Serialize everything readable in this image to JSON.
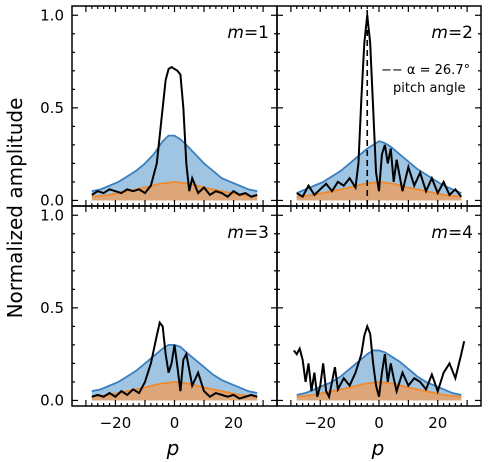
{
  "figure": {
    "ylabel": "Normalized amplitude",
    "xlabel": "p"
  },
  "colors": {
    "blue_fill": "#7fb1d8",
    "blue_line": "#3b7fc0",
    "orange_fill": "#e8a066",
    "orange_line": "#f08a2c",
    "black_line": "#000000"
  },
  "chart_data": [
    {
      "type": "area",
      "panel": "m=1",
      "label_prefix": "m",
      "label_value": "=1",
      "xlim": [
        -32,
        32
      ],
      "ylim": [
        -0.03,
        1.05
      ],
      "xticks": [
        -20,
        0,
        20
      ],
      "yticks": [
        0.0,
        0.5,
        1.0
      ],
      "ytick_labels": [
        "0.0",
        "0.5",
        "1.0"
      ],
      "series": [
        {
          "style": "blue_area",
          "x": [
            -28,
            -25,
            -22,
            -19,
            -16,
            -13,
            -10,
            -7,
            -4,
            -2,
            0,
            2,
            4,
            7,
            10,
            13,
            16,
            19,
            22,
            25,
            28
          ],
          "values": [
            0.05,
            0.06,
            0.08,
            0.1,
            0.13,
            0.16,
            0.2,
            0.25,
            0.32,
            0.35,
            0.35,
            0.33,
            0.3,
            0.25,
            0.2,
            0.16,
            0.12,
            0.1,
            0.08,
            0.06,
            0.05
          ]
        },
        {
          "style": "orange_area",
          "x": [
            -28,
            -22,
            -16,
            -10,
            -5,
            0,
            5,
            10,
            16,
            22,
            28
          ],
          "values": [
            0.02,
            0.03,
            0.05,
            0.07,
            0.09,
            0.1,
            0.09,
            0.07,
            0.05,
            0.03,
            0.02
          ]
        },
        {
          "style": "black_line",
          "x": [
            -28,
            -26,
            -24,
            -22,
            -20,
            -18,
            -16,
            -14,
            -12,
            -10,
            -8,
            -6,
            -4,
            -3,
            -2,
            -1,
            0,
            1,
            2,
            3,
            4,
            5,
            6,
            8,
            10,
            12,
            14,
            16,
            18,
            20,
            22,
            24,
            26,
            28
          ],
          "values": [
            0.03,
            0.05,
            0.04,
            0.06,
            0.05,
            0.04,
            0.06,
            0.05,
            0.06,
            0.04,
            0.08,
            0.2,
            0.5,
            0.65,
            0.71,
            0.72,
            0.71,
            0.7,
            0.68,
            0.5,
            0.2,
            0.05,
            0.12,
            0.04,
            0.07,
            0.03,
            0.05,
            0.04,
            0.02,
            0.05,
            0.03,
            0.04,
            0.02,
            0.03
          ]
        }
      ]
    },
    {
      "type": "area",
      "panel": "m=2",
      "label_prefix": "m",
      "label_value": "=2",
      "xlim": [
        -32,
        32
      ],
      "ylim": [
        -0.03,
        1.05
      ],
      "xticks": [
        -20,
        0,
        20
      ],
      "yticks": [
        0.0,
        0.5,
        1.0
      ],
      "legend": {
        "text": "−− α = 26.7°",
        "subtext": "pitch angle",
        "vline_x": -4
      },
      "series": [
        {
          "style": "blue_area",
          "x": [
            -28,
            -25,
            -22,
            -19,
            -16,
            -13,
            -10,
            -7,
            -4,
            -2,
            0,
            2,
            4,
            7,
            10,
            13,
            16,
            19,
            22,
            25,
            28
          ],
          "values": [
            0.04,
            0.06,
            0.08,
            0.1,
            0.13,
            0.16,
            0.2,
            0.24,
            0.28,
            0.3,
            0.32,
            0.31,
            0.29,
            0.25,
            0.21,
            0.17,
            0.14,
            0.11,
            0.08,
            0.06,
            0.04
          ]
        },
        {
          "style": "orange_area",
          "x": [
            -28,
            -22,
            -16,
            -10,
            -5,
            0,
            5,
            10,
            16,
            22,
            28
          ],
          "values": [
            0.02,
            0.03,
            0.05,
            0.07,
            0.09,
            0.1,
            0.09,
            0.07,
            0.05,
            0.03,
            0.02
          ]
        },
        {
          "style": "black_line",
          "x": [
            -28,
            -26,
            -24,
            -22,
            -20,
            -18,
            -16,
            -14,
            -12,
            -10,
            -8,
            -7,
            -6,
            -5,
            -4,
            -3,
            -2,
            -1,
            0,
            1,
            2,
            3,
            4,
            5,
            6,
            8,
            10,
            12,
            14,
            16,
            18,
            20,
            22,
            24,
            26,
            28
          ],
          "values": [
            0.04,
            0.02,
            0.08,
            0.03,
            0.06,
            0.09,
            0.05,
            0.1,
            0.08,
            0.12,
            0.07,
            0.2,
            0.55,
            0.85,
            1.0,
            0.85,
            0.5,
            0.15,
            0.05,
            0.25,
            0.3,
            0.2,
            0.28,
            0.1,
            0.22,
            0.05,
            0.18,
            0.08,
            0.15,
            0.05,
            0.12,
            0.04,
            0.1,
            0.03,
            0.06,
            0.02
          ]
        }
      ]
    },
    {
      "type": "area",
      "panel": "m=3",
      "label_prefix": "m",
      "label_value": "=3",
      "xlim": [
        -32,
        32
      ],
      "ylim": [
        -0.03,
        1.05
      ],
      "xticks": [
        -20,
        0,
        20
      ],
      "yticks": [
        0.0,
        0.5,
        1.0
      ],
      "xtick_labels": [
        "−20",
        "0",
        "20"
      ],
      "series": [
        {
          "style": "blue_area",
          "x": [
            -28,
            -25,
            -22,
            -19,
            -16,
            -13,
            -10,
            -7,
            -4,
            -2,
            0,
            2,
            4,
            7,
            10,
            13,
            16,
            19,
            22,
            25,
            28
          ],
          "values": [
            0.05,
            0.06,
            0.08,
            0.1,
            0.13,
            0.16,
            0.2,
            0.24,
            0.28,
            0.3,
            0.3,
            0.29,
            0.26,
            0.22,
            0.18,
            0.14,
            0.11,
            0.09,
            0.07,
            0.05,
            0.04
          ]
        },
        {
          "style": "orange_area",
          "x": [
            -28,
            -22,
            -16,
            -10,
            -5,
            0,
            5,
            10,
            16,
            22,
            28
          ],
          "values": [
            0.02,
            0.03,
            0.05,
            0.07,
            0.09,
            0.1,
            0.09,
            0.07,
            0.05,
            0.03,
            0.02
          ]
        },
        {
          "style": "black_line",
          "x": [
            -28,
            -26,
            -24,
            -22,
            -20,
            -18,
            -16,
            -14,
            -12,
            -10,
            -8,
            -6,
            -5,
            -4,
            -3,
            -2,
            -1,
            0,
            1,
            2,
            3,
            4,
            6,
            8,
            10,
            12,
            14,
            16,
            18,
            20,
            22,
            24,
            26,
            28
          ],
          "values": [
            0.02,
            0.03,
            0.02,
            0.04,
            0.02,
            0.05,
            0.03,
            0.06,
            0.04,
            0.1,
            0.2,
            0.35,
            0.42,
            0.4,
            0.25,
            0.15,
            0.2,
            0.3,
            0.18,
            0.05,
            0.22,
            0.25,
            0.08,
            0.15,
            0.05,
            0.02,
            0.04,
            0.03,
            0.02,
            0.03,
            0.01,
            0.02,
            0.03,
            0.02
          ]
        }
      ]
    },
    {
      "type": "area",
      "panel": "m=4",
      "label_prefix": "m",
      "label_value": "=4",
      "xlim": [
        -32,
        32
      ],
      "ylim": [
        -0.03,
        1.05
      ],
      "xticks": [
        -20,
        0,
        20
      ],
      "yticks": [
        0.0,
        0.5,
        1.0
      ],
      "xtick_labels": [
        "−20",
        "0",
        "20"
      ],
      "series": [
        {
          "style": "blue_area",
          "x": [
            -28,
            -25,
            -22,
            -19,
            -16,
            -13,
            -10,
            -7,
            -4,
            -2,
            0,
            2,
            4,
            7,
            10,
            13,
            16,
            19,
            22,
            25,
            28
          ],
          "values": [
            0.03,
            0.04,
            0.06,
            0.08,
            0.1,
            0.13,
            0.17,
            0.21,
            0.25,
            0.27,
            0.27,
            0.26,
            0.24,
            0.21,
            0.17,
            0.13,
            0.1,
            0.08,
            0.06,
            0.04,
            0.03
          ]
        },
        {
          "style": "orange_area",
          "x": [
            -28,
            -22,
            -16,
            -10,
            -5,
            0,
            5,
            10,
            16,
            22,
            28
          ],
          "values": [
            0.02,
            0.03,
            0.05,
            0.07,
            0.09,
            0.1,
            0.09,
            0.07,
            0.05,
            0.03,
            0.02
          ]
        },
        {
          "style": "black_line",
          "x": [
            -29,
            -28,
            -27,
            -26,
            -25,
            -24,
            -23,
            -22,
            -21,
            -20,
            -19,
            -18,
            -17,
            -16,
            -15,
            -14,
            -12,
            -10,
            -8,
            -6,
            -5,
            -4,
            -3,
            -2,
            -1,
            0,
            1,
            2,
            3,
            4,
            5,
            6,
            8,
            10,
            12,
            14,
            16,
            18,
            20,
            22,
            24,
            26,
            28,
            29
          ],
          "values": [
            0.27,
            0.25,
            0.28,
            0.22,
            0.1,
            0.2,
            0.05,
            0.15,
            0.02,
            0.08,
            0.2,
            0.05,
            0.02,
            0.1,
            0.18,
            0.06,
            0.12,
            0.08,
            0.15,
            0.25,
            0.35,
            0.4,
            0.36,
            0.2,
            0.08,
            0.02,
            0.15,
            0.25,
            0.1,
            0.2,
            0.12,
            0.05,
            0.15,
            0.08,
            0.12,
            0.1,
            0.06,
            0.14,
            0.05,
            0.15,
            0.2,
            0.12,
            0.25,
            0.32
          ]
        }
      ]
    }
  ]
}
